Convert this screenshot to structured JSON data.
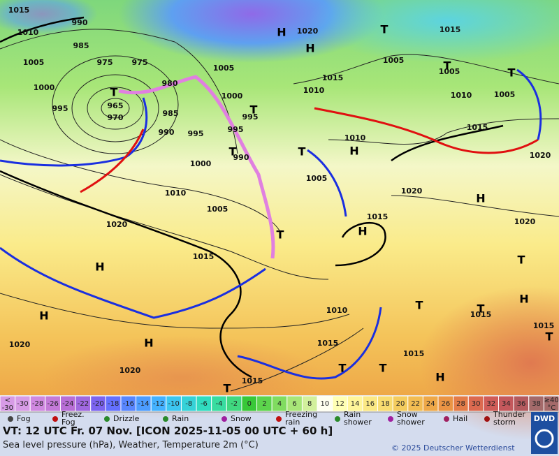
{
  "map": {
    "isobar_labels": [
      1015,
      1010,
      990,
      985,
      1005,
      975,
      975,
      1000,
      995,
      965,
      970,
      980,
      985,
      990,
      995,
      1000,
      1005,
      1000,
      995,
      995,
      990,
      1010,
      1005,
      1020,
      1015,
      1020,
      1015,
      1010,
      1005,
      1010,
      1020,
      1015,
      1015,
      1005,
      1005,
      1010,
      1005,
      1015,
      1020,
      1020,
      1010,
      1015,
      1015,
      1015,
      1015,
      1020,
      1020,
      1015
    ],
    "high_labels": [
      "H",
      "H",
      "H",
      "H",
      "H",
      "H",
      "H",
      "H",
      "H",
      "H"
    ],
    "low_labels": [
      "T",
      "T",
      "T",
      "T",
      "T",
      "T",
      "T",
      "T",
      "T",
      "T",
      "T",
      "T",
      "T",
      "T",
      "T"
    ]
  },
  "temperature_scale": {
    "below_label": [
      "<",
      "-30"
    ],
    "values": [
      -30,
      -28,
      -26,
      -24,
      -22,
      -20,
      -18,
      -16,
      -14,
      -12,
      -10,
      -8,
      -6,
      -4,
      -2,
      0,
      2,
      4,
      6,
      8,
      10,
      12,
      14,
      16,
      18,
      20,
      22,
      24,
      26,
      28,
      30,
      32,
      34,
      36,
      38
    ],
    "colors": [
      "#d79be6",
      "#cf88e0",
      "#c47ad8",
      "#b86ed6",
      "#a068e0",
      "#7c64f0",
      "#6470ff",
      "#5886ff",
      "#4c9cff",
      "#44b2ff",
      "#3cc6f0",
      "#36d2d8",
      "#30dcc0",
      "#38dca0",
      "#40d880",
      "#38c838",
      "#5cd44c",
      "#80dc60",
      "#a8e678",
      "#d2f09c",
      "#fffff0",
      "#ffffb4",
      "#fff59a",
      "#fbe884",
      "#f8dc70",
      "#f4cc5e",
      "#f2bc52",
      "#eea848",
      "#ea9444",
      "#e47c48",
      "#dc6a50",
      "#d05c58",
      "#c4585c",
      "#b45a5e",
      "#a46a6a"
    ],
    "above_label": [
      "≥40",
      "°C"
    ]
  },
  "legend": [
    "Fog",
    "Freez.\nFog",
    "Drizzle",
    "Rain",
    "Snow",
    "Freezing\nrain",
    "Rain\nshower",
    "Snow\nshower",
    "Hail",
    "Thunder\nstorm"
  ],
  "footer": {
    "valid_time": "VT: 12 UTC Fr.  07 Nov. [ICON 2025-11-05  00 UTC + 60 h]",
    "description": "Sea level pressure (hPa), Weather, Temperature 2m (°C)",
    "copyright": "© 2025 Deutscher Wetterdienst",
    "logo": "DWD"
  }
}
